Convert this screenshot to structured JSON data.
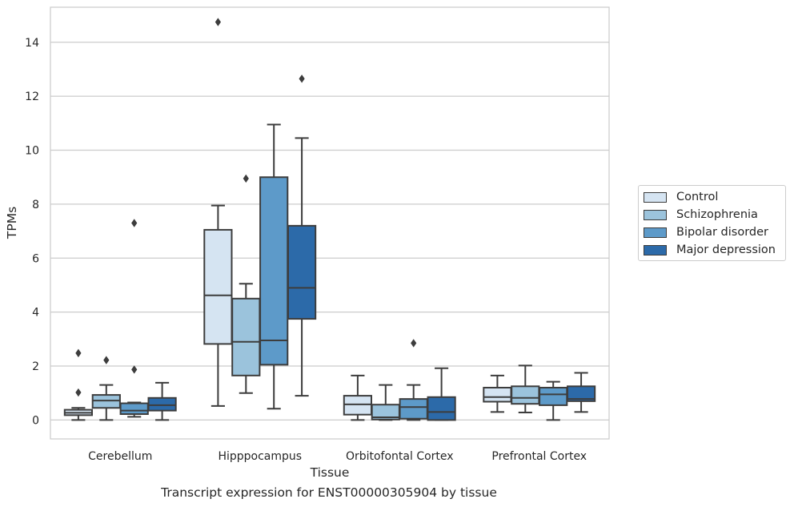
{
  "chart_data": {
    "type": "box",
    "xlabel": "Tissue",
    "ylabel": "TPMs",
    "caption": "Transcript expression for ENST00000305904 by tissue",
    "ylim": [
      -0.7,
      15.3
    ],
    "yticks": [
      0,
      2,
      4,
      6,
      8,
      10,
      12,
      14
    ],
    "grid": "horizontal",
    "legend_position": "right",
    "categories": [
      "Cerebellum",
      "Hipppocampus",
      "Orbitofontal Cortex",
      "Prefrontal Cortex"
    ],
    "series": [
      {
        "name": "Control",
        "color": "#d5e4f2",
        "boxes": [
          {
            "whislo": 0.0,
            "q1": 0.18,
            "med": 0.27,
            "q3": 0.38,
            "whishi": 0.45,
            "fliers": [
              1.02,
              2.48
            ]
          },
          {
            "whislo": 0.52,
            "q1": 2.82,
            "med": 4.62,
            "q3": 7.05,
            "whishi": 7.95,
            "fliers": [
              14.75
            ]
          },
          {
            "whislo": 0.0,
            "q1": 0.2,
            "med": 0.58,
            "q3": 0.9,
            "whishi": 1.65,
            "fliers": []
          },
          {
            "whislo": 0.3,
            "q1": 0.68,
            "med": 0.85,
            "q3": 1.2,
            "whishi": 1.65,
            "fliers": []
          }
        ]
      },
      {
        "name": "Schizophrenia",
        "color": "#9bc3dc",
        "boxes": [
          {
            "whislo": 0.0,
            "q1": 0.45,
            "med": 0.72,
            "q3": 0.93,
            "whishi": 1.3,
            "fliers": [
              2.22
            ]
          },
          {
            "whislo": 1.0,
            "q1": 1.65,
            "med": 2.9,
            "q3": 4.5,
            "whishi": 5.05,
            "fliers": [
              8.95
            ]
          },
          {
            "whislo": 0.0,
            "q1": 0.02,
            "med": 0.1,
            "q3": 0.57,
            "whishi": 1.3,
            "fliers": []
          },
          {
            "whislo": 0.28,
            "q1": 0.6,
            "med": 0.82,
            "q3": 1.25,
            "whishi": 2.02,
            "fliers": []
          }
        ]
      },
      {
        "name": "Bipolar disorder",
        "color": "#5d9ac9",
        "boxes": [
          {
            "whislo": 0.12,
            "q1": 0.22,
            "med": 0.35,
            "q3": 0.62,
            "whishi": 0.65,
            "fliers": [
              1.87,
              7.3
            ]
          },
          {
            "whislo": 0.42,
            "q1": 2.05,
            "med": 2.95,
            "q3": 9.0,
            "whishi": 10.95,
            "fliers": []
          },
          {
            "whislo": 0.0,
            "q1": 0.05,
            "med": 0.48,
            "q3": 0.78,
            "whishi": 1.3,
            "fliers": [
              2.85
            ]
          },
          {
            "whislo": 0.0,
            "q1": 0.55,
            "med": 0.95,
            "q3": 1.2,
            "whishi": 1.42,
            "fliers": []
          }
        ]
      },
      {
        "name": "Major depression",
        "color": "#2c6aa9",
        "boxes": [
          {
            "whislo": 0.0,
            "q1": 0.35,
            "med": 0.55,
            "q3": 0.82,
            "whishi": 1.38,
            "fliers": []
          },
          {
            "whislo": 0.9,
            "q1": 3.75,
            "med": 4.9,
            "q3": 7.2,
            "whishi": 10.45,
            "fliers": [
              12.65
            ]
          },
          {
            "whislo": 0.0,
            "q1": 0.0,
            "med": 0.3,
            "q3": 0.85,
            "whishi": 1.92,
            "fliers": []
          },
          {
            "whislo": 0.3,
            "q1": 0.7,
            "med": 0.78,
            "q3": 1.25,
            "whishi": 1.75,
            "fliers": []
          }
        ]
      }
    ]
  }
}
